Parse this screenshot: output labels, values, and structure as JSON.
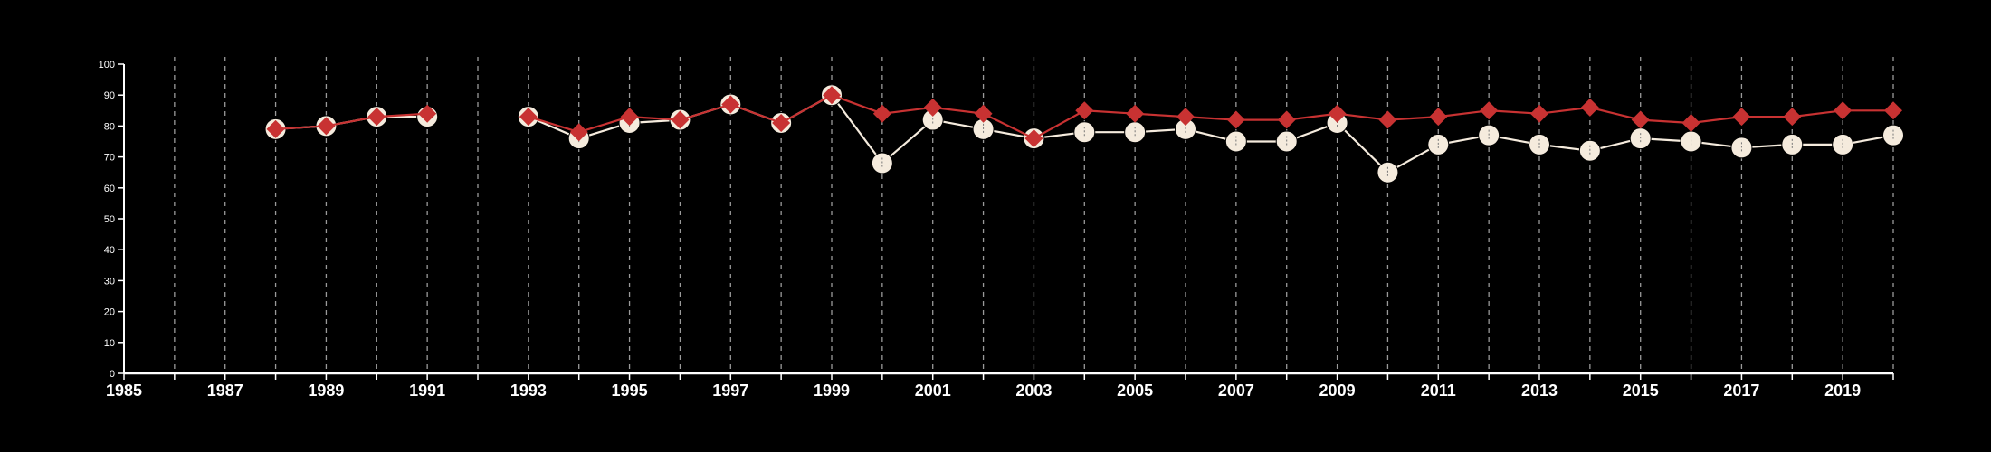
{
  "chart_data": {
    "type": "line",
    "title": "",
    "xlabel": "",
    "ylabel": "",
    "xlim": [
      1985,
      2020
    ],
    "ylim": [
      0,
      100
    ],
    "y_ticks": [
      "0",
      "10",
      "20",
      "30",
      "40",
      "50",
      "60",
      "70",
      "80",
      "90",
      "100"
    ],
    "x_ticks": [
      "1985",
      "1987",
      "1989",
      "1991",
      "1993",
      "1995",
      "1997",
      "1999",
      "2001",
      "2003",
      "2005",
      "2007",
      "2009",
      "2011",
      "2013",
      "2015",
      "2017",
      "2019"
    ],
    "grid": "vertical dashed lines at every year",
    "legend": "none",
    "colors": {
      "background": "#000000",
      "axis": "#ffffff",
      "series_white": "#f5ebdd",
      "series_red": "#c83232"
    },
    "series": [
      {
        "marker": "circle",
        "color": "#f5ebdd",
        "points": [
          [
            1988,
            79
          ],
          [
            1989,
            80
          ],
          [
            1990,
            83
          ],
          [
            1991,
            83
          ],
          null,
          [
            1993,
            83
          ],
          [
            1994,
            76
          ],
          [
            1995,
            81
          ],
          [
            1996,
            82
          ],
          [
            1997,
            87
          ],
          [
            1998,
            81
          ],
          [
            1999,
            90
          ],
          [
            2000,
            68
          ],
          [
            2001,
            82
          ],
          [
            2002,
            79
          ],
          [
            2003,
            76
          ],
          [
            2004,
            78
          ],
          [
            2005,
            78
          ],
          [
            2006,
            79
          ],
          [
            2007,
            75
          ],
          [
            2008,
            75
          ],
          [
            2009,
            81
          ],
          [
            2010,
            65
          ],
          [
            2011,
            74
          ],
          [
            2012,
            77
          ],
          [
            2013,
            74
          ],
          [
            2014,
            72
          ],
          [
            2015,
            76
          ],
          [
            2016,
            75
          ],
          [
            2017,
            73
          ],
          [
            2018,
            74
          ],
          [
            2019,
            74
          ],
          [
            2020,
            77
          ]
        ]
      },
      {
        "marker": "diamond",
        "color": "#c83232",
        "points": [
          [
            1988,
            79
          ],
          [
            1989,
            80
          ],
          [
            1990,
            83
          ],
          [
            1991,
            84
          ],
          null,
          [
            1993,
            83
          ],
          [
            1994,
            78
          ],
          [
            1995,
            83
          ],
          [
            1996,
            82
          ],
          [
            1997,
            87
          ],
          [
            1998,
            81
          ],
          [
            1999,
            90
          ],
          [
            2000,
            84
          ],
          [
            2001,
            86
          ],
          [
            2002,
            84
          ],
          [
            2003,
            76
          ],
          [
            2004,
            85
          ],
          [
            2005,
            84
          ],
          [
            2006,
            83
          ],
          [
            2007,
            82
          ],
          [
            2008,
            82
          ],
          [
            2009,
            84
          ],
          [
            2010,
            82
          ],
          [
            2011,
            83
          ],
          [
            2012,
            85
          ],
          [
            2013,
            84
          ],
          [
            2014,
            86
          ],
          [
            2015,
            82
          ],
          [
            2016,
            81
          ],
          [
            2017,
            83
          ],
          [
            2018,
            83
          ],
          [
            2019,
            85
          ],
          [
            2020,
            85
          ]
        ]
      }
    ]
  }
}
